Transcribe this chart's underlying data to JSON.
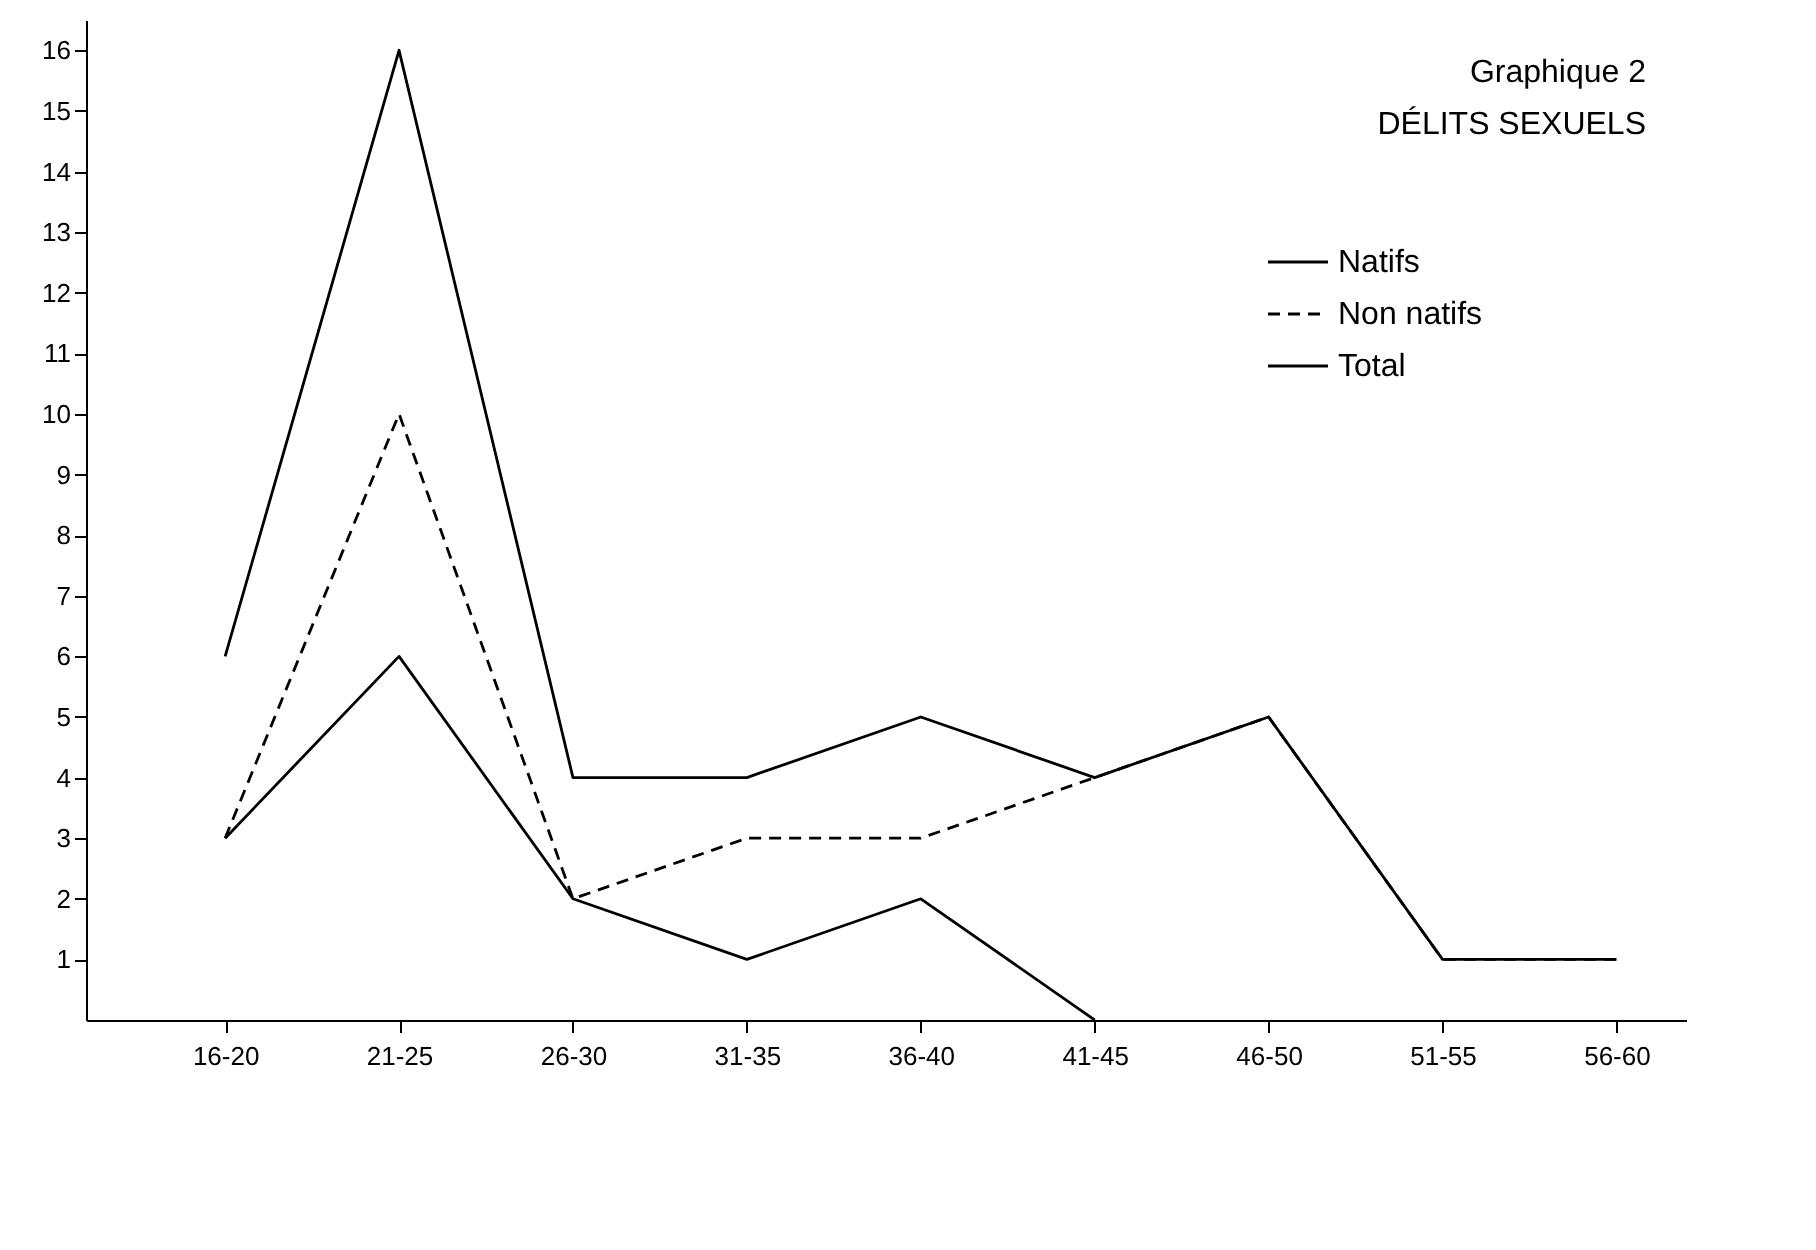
{
  "chart_data": {
    "type": "line",
    "title": "Graphique 2",
    "subtitle": "DÉLITS SEXUELS",
    "categories": [
      "16-20",
      "21-25",
      "26-30",
      "31-35",
      "36-40",
      "41-45",
      "46-50",
      "51-55",
      "56-60"
    ],
    "series": [
      {
        "name": "Natifs",
        "color": "#000000",
        "line_style": "solid",
        "values": [
          3,
          6,
          2,
          1,
          2,
          0,
          null,
          null,
          null
        ]
      },
      {
        "name": "Non natifs",
        "color": "#000000",
        "line_style": "dashed",
        "values": [
          3,
          10,
          2,
          3,
          3,
          4,
          5,
          1,
          1
        ]
      },
      {
        "name": "Total",
        "color": "#000000",
        "line_style": "solid",
        "values": [
          6,
          16,
          4,
          4,
          5,
          4,
          5,
          1,
          1
        ]
      }
    ],
    "ylim": [
      0,
      16.5
    ],
    "yticks": [
      1,
      2,
      3,
      4,
      5,
      6,
      7,
      8,
      9,
      10,
      11,
      12,
      13,
      14,
      15,
      16
    ],
    "grid": false,
    "legend": "top right",
    "marker": "none"
  }
}
